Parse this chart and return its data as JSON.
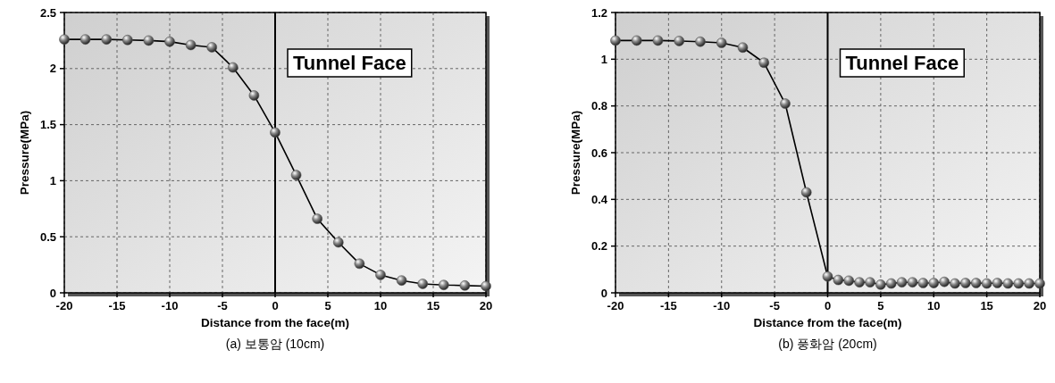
{
  "chart_data": [
    {
      "type": "line",
      "title": "(a) 보통암 (10cm)",
      "xlabel": "Distance from the face(m)",
      "ylabel": "Pressure(MPa)",
      "xlim": [
        -20,
        20
      ],
      "xticks": [
        -20,
        -15,
        -10,
        -5,
        0,
        5,
        10,
        15,
        20
      ],
      "ylim": [
        0,
        2.5
      ],
      "yticks": [
        0,
        0.5,
        1,
        1.5,
        2,
        2.5
      ],
      "grid": true,
      "marker": "circle",
      "line_style": "solid",
      "series": [
        {
          "color": "#555555",
          "x": [
            -20,
            -18,
            -16,
            -14,
            -12,
            -10,
            -8,
            -6,
            -4,
            -2,
            0,
            2,
            4,
            6,
            8,
            10,
            12,
            14,
            16,
            18,
            20
          ],
          "values": [
            2.26,
            2.26,
            2.26,
            2.255,
            2.25,
            2.24,
            2.21,
            2.19,
            2.01,
            1.76,
            1.43,
            1.05,
            0.66,
            0.45,
            0.26,
            0.16,
            0.11,
            0.08,
            0.07,
            0.065,
            0.06
          ]
        }
      ],
      "ref_lines": [
        {
          "axis": "x",
          "value": 0,
          "label": "Tunnel Face",
          "color": "#000000"
        }
      ]
    },
    {
      "type": "line",
      "title": "(b) 풍화암 (20cm)",
      "xlabel": "Distance from the face(m)",
      "ylabel": "Pressure(MPa)",
      "xlim": [
        -20,
        20
      ],
      "xticks": [
        -20,
        -15,
        -10,
        -5,
        0,
        5,
        10,
        15,
        20
      ],
      "ylim": [
        0,
        1.2
      ],
      "yticks": [
        0,
        0.2,
        0.4,
        0.6,
        0.8,
        1,
        1.2
      ],
      "grid": true,
      "marker": "circle",
      "line_style": "solid",
      "series": [
        {
          "color": "#555555",
          "x": [
            -20,
            -18,
            -16,
            -14,
            -12,
            -10,
            -8,
            -6,
            -4,
            -2,
            0,
            1,
            2,
            3,
            4,
            5,
            6,
            7,
            8,
            9,
            10,
            11,
            12,
            13,
            14,
            15,
            16,
            17,
            18,
            19,
            20
          ],
          "values": [
            1.08,
            1.08,
            1.08,
            1.078,
            1.075,
            1.07,
            1.05,
            0.985,
            0.81,
            0.43,
            0.07,
            0.055,
            0.052,
            0.045,
            0.045,
            0.035,
            0.04,
            0.045,
            0.045,
            0.042,
            0.042,
            0.047,
            0.04,
            0.042,
            0.042,
            0.04,
            0.042,
            0.04,
            0.04,
            0.04,
            0.04
          ]
        }
      ],
      "ref_lines": [
        {
          "axis": "x",
          "value": 0,
          "label": "Tunnel Face",
          "color": "#000000"
        }
      ]
    }
  ]
}
